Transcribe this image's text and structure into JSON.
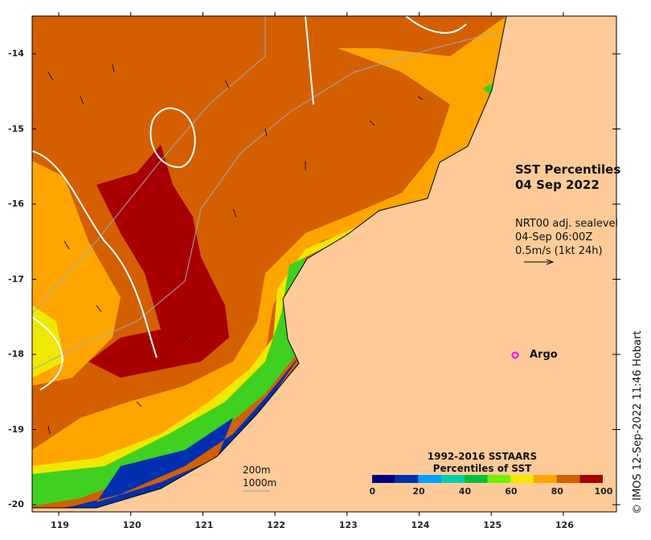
{
  "title": {
    "line1": "SST Percentiles",
    "line2": "04 Sep 2022"
  },
  "current_info": {
    "line1": "NRT00 adj. sealevel",
    "line2": "04-Sep 06:00Z",
    "line3": "0.5m/s (1kt 24h)"
  },
  "argo_label": "Argo",
  "depth_labels": [
    "200m",
    "1000m"
  ],
  "colorbar": {
    "title1": "1992-2016 SSTAARS",
    "title2": "Percentiles of SST",
    "ticks": [
      "0",
      "20",
      "40",
      "60",
      "80",
      "100"
    ],
    "colors": [
      "#000080",
      "#0030b0",
      "#00a0ff",
      "#00d0b0",
      "#00c040",
      "#70f000",
      "#f0e800",
      "#ffa500",
      "#d45f00",
      "#a80000"
    ]
  },
  "lat_ticks": [
    "-14",
    "-15",
    "-16",
    "-17",
    "-18",
    "-19",
    "-20"
  ],
  "lon_ticks": [
    "119",
    "120",
    "121",
    "122",
    "123",
    "124",
    "125",
    "126"
  ],
  "credit": "© IMOS 12-Sep-2022 11:46 Hobart",
  "colors": {
    "land": "#fecb98",
    "ocean_base": "#d45f00",
    "argo": "#ff00ff"
  }
}
